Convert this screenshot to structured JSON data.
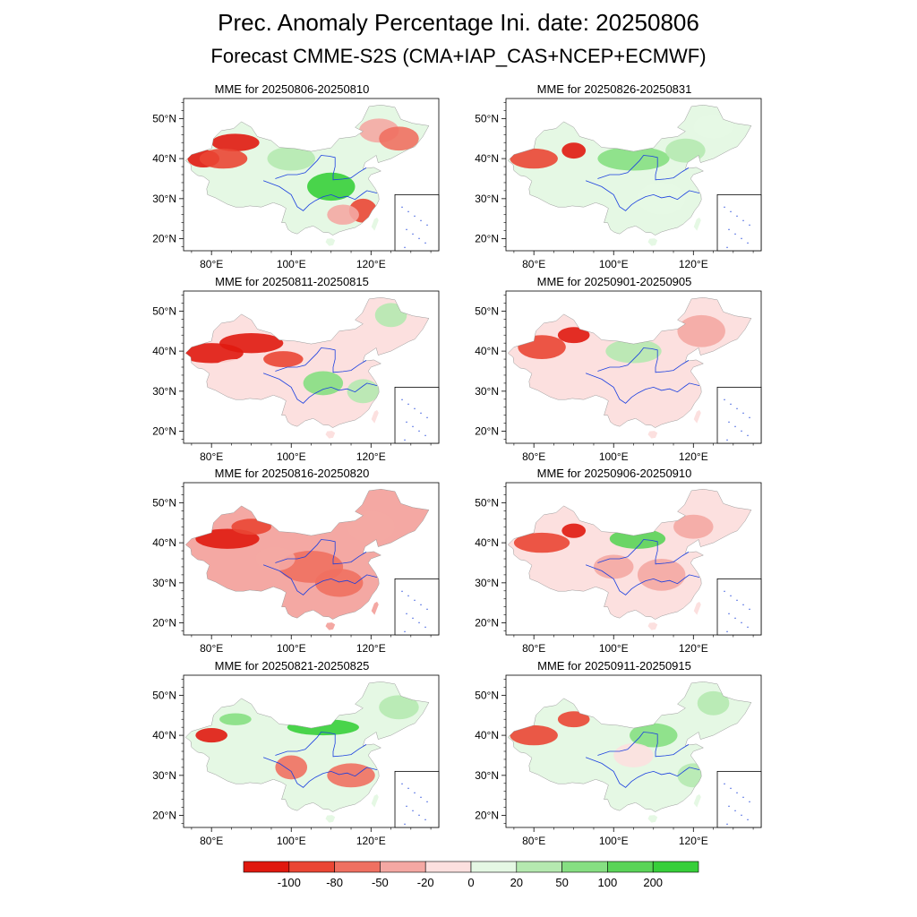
{
  "header": {
    "title": "Prec. Anomaly Percentage Ini. date: 20250806",
    "subtitle": "Forecast CMME-S2S (CMA+IAP_CAS+NCEP+ECMWF)"
  },
  "panels": [
    {
      "title": "MME for 20250806-20250810",
      "pattern": "p1"
    },
    {
      "title": "MME for 20250826-20250831",
      "pattern": "p5"
    },
    {
      "title": "MME for 20250811-20250815",
      "pattern": "p2"
    },
    {
      "title": "MME for 20250901-20250905",
      "pattern": "p6"
    },
    {
      "title": "MME for 20250816-20250820",
      "pattern": "p3"
    },
    {
      "title": "MME for 20250906-20250910",
      "pattern": "p7"
    },
    {
      "title": "MME for 20250821-20250825",
      "pattern": "p4"
    },
    {
      "title": "MME for 20250911-20250915",
      "pattern": "p8"
    }
  ],
  "axes": {
    "lat_labels": [
      "50°N",
      "40°N",
      "30°N",
      "20°N"
    ],
    "lon_labels": [
      "80°E",
      "100°E",
      "120°E"
    ]
  },
  "colorbar": {
    "labels": [
      "-100",
      "-80",
      "-50",
      "-20",
      "0",
      "20",
      "50",
      "100",
      "200"
    ],
    "colors": [
      "#e0190f",
      "#ea4634",
      "#ef7061",
      "#f4a8a3",
      "#fce0df",
      "#e5f8e4",
      "#b5e9b0",
      "#86df82",
      "#5ad458",
      "#37cf3a"
    ]
  }
}
